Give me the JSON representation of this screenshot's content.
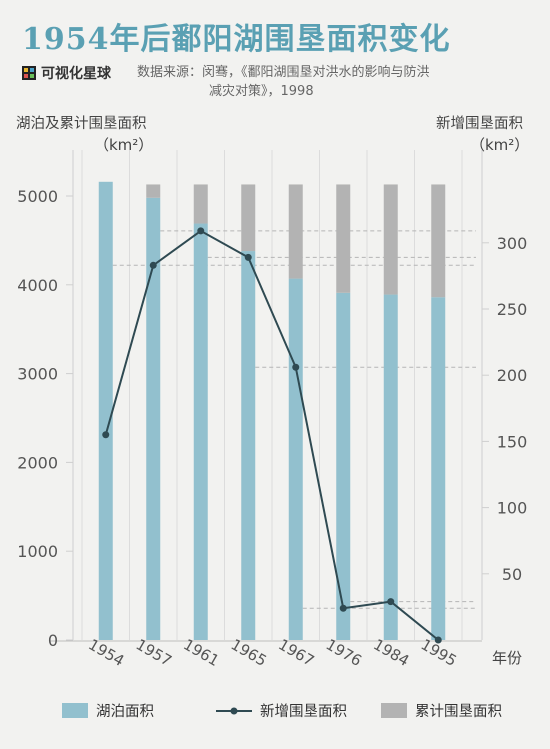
{
  "title": "1954年后鄱阳湖围垦面积变化",
  "brand": {
    "name": "可视化星球",
    "icon": "brand-logo-icon"
  },
  "source": {
    "line1": "数据来源：闵骞，《鄱阳湖围垦对洪水的影响与防洪",
    "line2": "减灾对策》，1998"
  },
  "axis_left": {
    "title": "湖泊及累计围垦面积",
    "unit": "（km²）"
  },
  "axis_right": {
    "title": "新增围垦面积",
    "unit": "（km²）"
  },
  "x_unit": "年份",
  "legend": {
    "lake": "湖泊面积",
    "new": "新增围垦面积",
    "cumulative": "累计围垦面积"
  },
  "colors": {
    "lake": "#92c0ce",
    "cumulative": "#b3b3b3",
    "line": "#2f4a52",
    "title": "#5aa0b3"
  },
  "chart_data": {
    "type": "bar",
    "categories": [
      "1954",
      "1957",
      "1961",
      "1965",
      "1967",
      "1976",
      "1984",
      "1995"
    ],
    "series": [
      {
        "name": "湖泊面积",
        "axis": "left",
        "values": [
          5160,
          4980,
          4690,
          4380,
          4070,
          3910,
          3890,
          3860
        ]
      },
      {
        "name": "累计围垦面积",
        "axis": "left",
        "values": [
          0,
          150,
          440,
          750,
          1060,
          1220,
          1240,
          1270
        ]
      },
      {
        "name": "新增围垦面积",
        "axis": "right",
        "type": "line",
        "values": [
          155,
          283,
          309,
          289,
          206,
          24,
          29,
          0
        ]
      }
    ],
    "yleft": {
      "ylim": [
        0,
        5600
      ],
      "ticks": [
        0,
        1000,
        2000,
        3000,
        4000,
        5000
      ]
    },
    "yright": {
      "ylim": [
        0,
        340
      ],
      "ticks": [
        50,
        100,
        150,
        200,
        250,
        300
      ]
    },
    "legend_position": "bottom",
    "grid": false
  }
}
